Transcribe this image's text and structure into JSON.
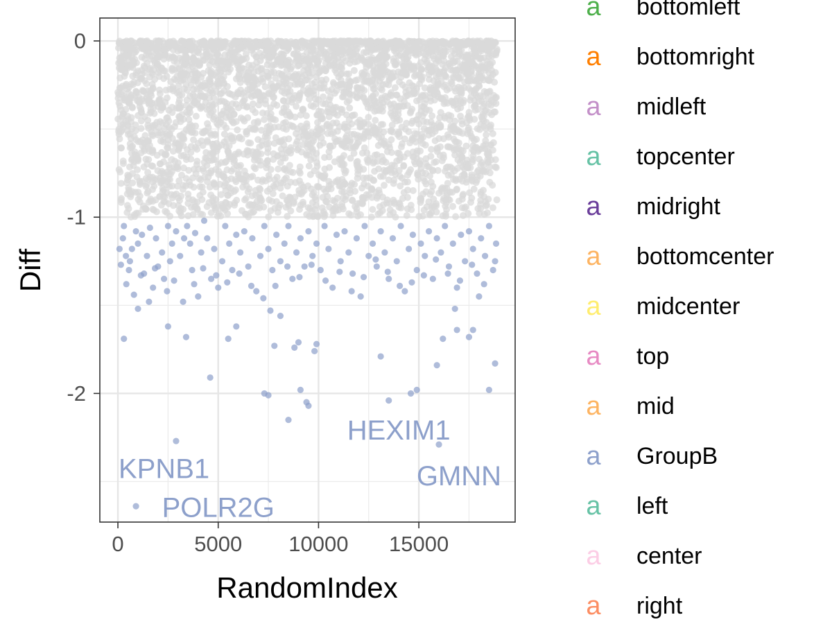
{
  "chart_data": {
    "type": "scatter",
    "title": "",
    "xlabel": "RandomIndex",
    "ylabel": "Diff",
    "xlim": [
      -900,
      19800
    ],
    "ylim": [
      -2.73,
      0.13
    ],
    "x_ticks": [
      0,
      5000,
      10000,
      15000
    ],
    "x_tick_labels": [
      "0",
      "5000",
      "10000",
      "15000"
    ],
    "y_ticks": [
      0,
      -1,
      -2
    ],
    "y_tick_labels": [
      "0",
      "-1",
      "-2"
    ],
    "grid": true,
    "legend_position": "right",
    "background_points": {
      "color": "#d9d9d9",
      "range_x": [
        0,
        18900
      ],
      "range_y": [
        -1.0,
        0.0
      ],
      "approx_count": 18900
    },
    "series": [
      {
        "name": "GroupB",
        "color": "#8da0cb",
        "points": [
          [
            250,
            -1.12
          ],
          [
            150,
            -1.27
          ],
          [
            400,
            -1.22
          ],
          [
            600,
            -1.25
          ],
          [
            550,
            -1.3
          ],
          [
            300,
            -1.05
          ],
          [
            700,
            -1.18
          ],
          [
            900,
            -1.08
          ],
          [
            1000,
            -1.15
          ],
          [
            1200,
            -1.1
          ],
          [
            1300,
            -1.32
          ],
          [
            1450,
            -1.22
          ],
          [
            1600,
            -1.06
          ],
          [
            1750,
            -1.4
          ],
          [
            1900,
            -1.12
          ],
          [
            2000,
            -1.28
          ],
          [
            2200,
            -1.2
          ],
          [
            2300,
            -1.35
          ],
          [
            2500,
            -1.05
          ],
          [
            2600,
            -1.25
          ],
          [
            2700,
            -1.15
          ],
          [
            2900,
            -1.08
          ],
          [
            3100,
            -1.22
          ],
          [
            3300,
            -1.12
          ],
          [
            3450,
            -1.05
          ],
          [
            3600,
            -1.15
          ],
          [
            3700,
            -1.3
          ],
          [
            3850,
            -1.09
          ],
          [
            4000,
            -1.45
          ],
          [
            4150,
            -1.2
          ],
          [
            4300,
            -1.02
          ],
          [
            4450,
            -1.12
          ],
          [
            4650,
            -1.35
          ],
          [
            4800,
            -1.18
          ],
          [
            5000,
            -1.4
          ],
          [
            5200,
            -1.25
          ],
          [
            5350,
            -1.05
          ],
          [
            5550,
            -1.15
          ],
          [
            5700,
            -1.3
          ],
          [
            5900,
            -1.1
          ],
          [
            6100,
            -1.2
          ],
          [
            6300,
            -1.08
          ],
          [
            6500,
            -1.28
          ],
          [
            6700,
            -1.12
          ],
          [
            6900,
            -1.42
          ],
          [
            7100,
            -1.22
          ],
          [
            7300,
            -1.05
          ],
          [
            7500,
            -1.18
          ],
          [
            7700,
            -1.3
          ],
          [
            7900,
            -1.1
          ],
          [
            8100,
            -1.25
          ],
          [
            8300,
            -1.15
          ],
          [
            8500,
            -1.05
          ],
          [
            8700,
            -1.35
          ],
          [
            8900,
            -1.2
          ],
          [
            9100,
            -1.12
          ],
          [
            9300,
            -1.28
          ],
          [
            9500,
            -1.08
          ],
          [
            9700,
            -1.22
          ],
          [
            9900,
            -1.15
          ],
          [
            10100,
            -1.3
          ],
          [
            10300,
            -1.05
          ],
          [
            10500,
            -1.18
          ],
          [
            10700,
            -1.4
          ],
          [
            10900,
            -1.1
          ],
          [
            11100,
            -1.25
          ],
          [
            11300,
            -1.08
          ],
          [
            11500,
            -1.2
          ],
          [
            11700,
            -1.32
          ],
          [
            11900,
            -1.12
          ],
          [
            12100,
            -1.45
          ],
          [
            12300,
            -1.05
          ],
          [
            12500,
            -1.22
          ],
          [
            12700,
            -1.15
          ],
          [
            12900,
            -1.28
          ],
          [
            13100,
            -1.08
          ],
          [
            13300,
            -1.2
          ],
          [
            13500,
            -1.35
          ],
          [
            13700,
            -1.12
          ],
          [
            13900,
            -1.25
          ],
          [
            14100,
            -1.05
          ],
          [
            14300,
            -1.42
          ],
          [
            14500,
            -1.18
          ],
          [
            14700,
            -1.1
          ],
          [
            14900,
            -1.3
          ],
          [
            15100,
            -1.15
          ],
          [
            15300,
            -1.22
          ],
          [
            15500,
            -1.08
          ],
          [
            15700,
            -1.35
          ],
          [
            15900,
            -1.12
          ],
          [
            16100,
            -1.2
          ],
          [
            16300,
            -1.05
          ],
          [
            16500,
            -1.28
          ],
          [
            16700,
            -1.15
          ],
          [
            16900,
            -1.4
          ],
          [
            17100,
            -1.1
          ],
          [
            17300,
            -1.25
          ],
          [
            17500,
            -1.08
          ],
          [
            17700,
            -1.18
          ],
          [
            17900,
            -1.32
          ],
          [
            18100,
            -1.12
          ],
          [
            18300,
            -1.22
          ],
          [
            18500,
            -1.05
          ],
          [
            18700,
            -1.3
          ],
          [
            18850,
            -1.15
          ],
          [
            80,
            -1.18
          ],
          [
            420,
            -1.38
          ],
          [
            800,
            -1.44
          ],
          [
            1150,
            -1.33
          ],
          [
            1550,
            -1.48
          ],
          [
            1850,
            -1.29
          ],
          [
            2450,
            -1.42
          ],
          [
            2800,
            -1.36
          ],
          [
            3250,
            -1.48
          ],
          [
            3800,
            -1.38
          ],
          [
            4250,
            -1.29
          ],
          [
            4900,
            -1.33
          ],
          [
            5450,
            -1.37
          ],
          [
            6050,
            -1.32
          ],
          [
            6650,
            -1.39
          ],
          [
            7250,
            -1.46
          ],
          [
            7850,
            -1.39
          ],
          [
            8450,
            -1.28
          ],
          [
            9050,
            -1.34
          ],
          [
            9650,
            -1.27
          ],
          [
            10350,
            -1.36
          ],
          [
            11050,
            -1.31
          ],
          [
            11650,
            -1.42
          ],
          [
            12250,
            -1.34
          ],
          [
            12850,
            -1.24
          ],
          [
            13450,
            -1.31
          ],
          [
            14050,
            -1.39
          ],
          [
            14650,
            -1.37
          ],
          [
            15250,
            -1.33
          ],
          [
            15850,
            -1.24
          ],
          [
            16450,
            -1.32
          ],
          [
            17050,
            -1.36
          ],
          [
            17650,
            -1.27
          ],
          [
            18250,
            -1.38
          ],
          [
            18800,
            -1.25
          ]
        ]
      }
    ],
    "sparse_points": [
      [
        300,
        -1.69
      ],
      [
        1000,
        -1.52
      ],
      [
        2500,
        -1.62
      ],
      [
        3400,
        -1.68
      ],
      [
        4600,
        -1.91
      ],
      [
        5500,
        -1.69
      ],
      [
        5900,
        -1.62
      ],
      [
        7300,
        -2.0
      ],
      [
        7500,
        -2.01
      ],
      [
        7600,
        -1.53
      ],
      [
        7800,
        -1.73
      ],
      [
        8100,
        -1.56
      ],
      [
        8500,
        -2.15
      ],
      [
        8800,
        -1.74
      ],
      [
        9000,
        -1.71
      ],
      [
        9100,
        -1.98
      ],
      [
        9400,
        -2.05
      ],
      [
        9500,
        -2.07
      ],
      [
        9800,
        -1.76
      ],
      [
        9900,
        -1.72
      ],
      [
        13100,
        -1.79
      ],
      [
        13500,
        -2.04
      ],
      [
        14600,
        -2.0
      ],
      [
        14900,
        -1.98
      ],
      [
        15900,
        -1.84
      ],
      [
        16200,
        -1.69
      ],
      [
        16800,
        -1.52
      ],
      [
        16900,
        -1.64
      ],
      [
        17500,
        -1.68
      ],
      [
        17700,
        -1.64
      ],
      [
        18000,
        -1.45
      ],
      [
        18500,
        -1.98
      ],
      [
        18800,
        -1.83
      ],
      [
        2900,
        -2.27
      ],
      [
        16000,
        -2.29
      ],
      [
        900,
        -2.64
      ]
    ],
    "annotations": [
      {
        "text": "KPNB1",
        "x": 2300,
        "y": -2.43
      },
      {
        "text": "POLR2G",
        "x": 5000,
        "y": -2.65
      },
      {
        "text": "HEXIM1",
        "x": 14000,
        "y": -2.21
      },
      {
        "text": "GMNN",
        "x": 17000,
        "y": -2.47
      }
    ],
    "legend": [
      {
        "key": "a",
        "label": "bottomleft",
        "color": "#4daf4a"
      },
      {
        "key": "a",
        "label": "bottomright",
        "color": "#ff7f00"
      },
      {
        "key": "a",
        "label": "midleft",
        "color": "#c38fc8"
      },
      {
        "key": "a",
        "label": "topcenter",
        "color": "#66c2a5"
      },
      {
        "key": "a",
        "label": "midright",
        "color": "#6a3d9a"
      },
      {
        "key": "a",
        "label": "bottomcenter",
        "color": "#fdb462"
      },
      {
        "key": "a",
        "label": "midcenter",
        "color": "#ffed6f"
      },
      {
        "key": "a",
        "label": "top",
        "color": "#e78ac3"
      },
      {
        "key": "a",
        "label": "mid",
        "color": "#fdb462"
      },
      {
        "key": "a",
        "label": "GroupB",
        "color": "#8da0cb"
      },
      {
        "key": "a",
        "label": "left",
        "color": "#66c2a5"
      },
      {
        "key": "a",
        "label": "center",
        "color": "#fccde5"
      },
      {
        "key": "a",
        "label": "right",
        "color": "#fc8d62"
      }
    ]
  }
}
